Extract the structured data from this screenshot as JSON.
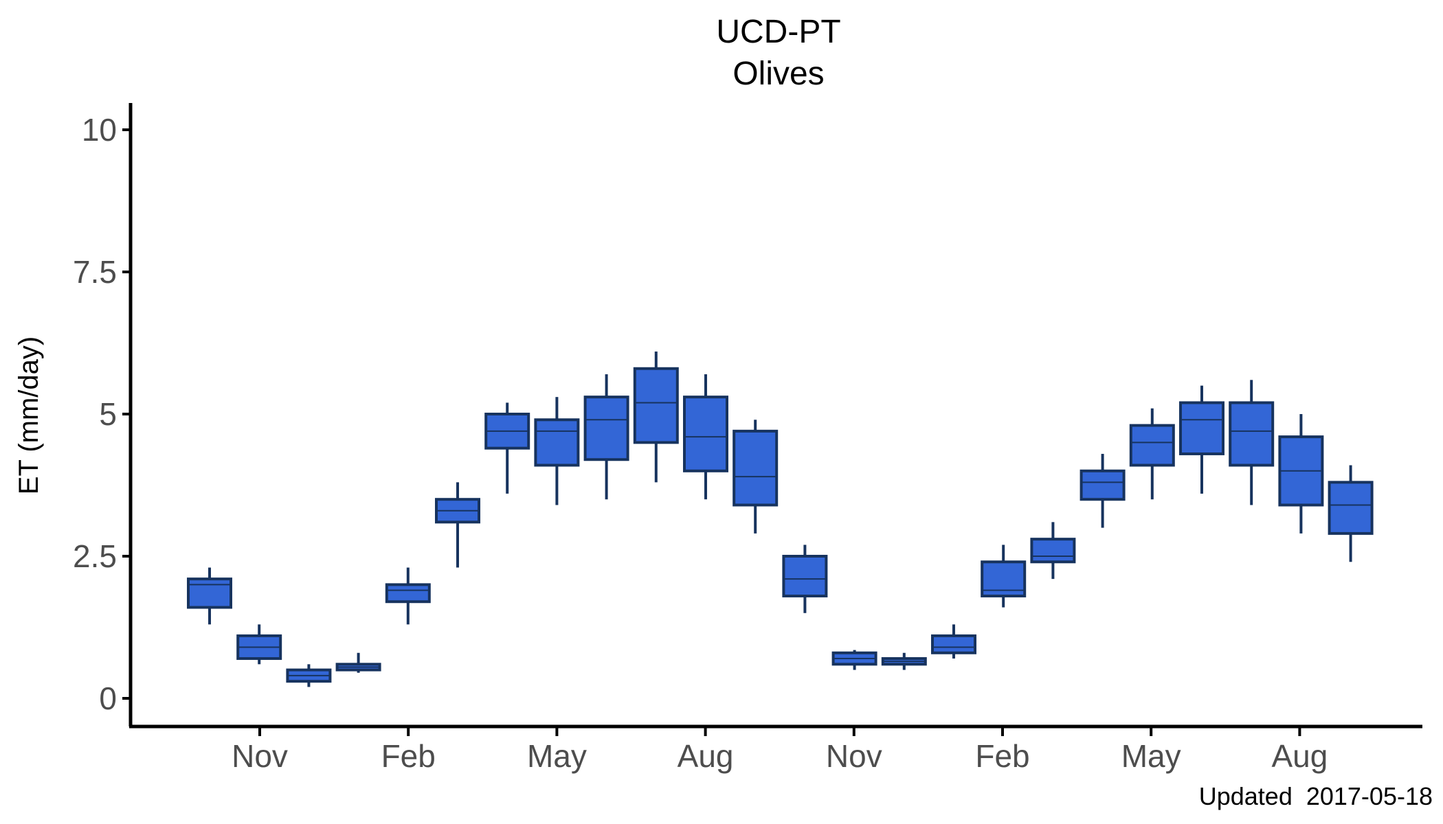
{
  "chart_data": {
    "type": "boxplot",
    "title": "UCD-PT",
    "subtitle": "Olives",
    "xlabel": "",
    "ylabel": "ET (mm/day)",
    "caption": "Updated  2017-05-18",
    "ylim": [
      -0.5,
      10.5
    ],
    "y_ticks": [
      {
        "value": 0,
        "label": "0"
      },
      {
        "value": 2.5,
        "label": "2.5"
      },
      {
        "value": 5,
        "label": "5"
      },
      {
        "value": 7.5,
        "label": "7.5"
      },
      {
        "value": 10,
        "label": "10"
      }
    ],
    "x_ticks": [
      {
        "month_index": 2,
        "label": "Nov"
      },
      {
        "month_index": 5,
        "label": "Feb"
      },
      {
        "month_index": 8,
        "label": "May"
      },
      {
        "month_index": 11,
        "label": "Aug"
      },
      {
        "month_index": 14,
        "label": "Nov"
      },
      {
        "month_index": 17,
        "label": "Feb"
      },
      {
        "month_index": 20,
        "label": "May"
      },
      {
        "month_index": 23,
        "label": "Aug"
      }
    ],
    "grid": false,
    "colors": {
      "box_fill": "#3366d6",
      "box_stroke": "#17335e",
      "axis": "#000000",
      "tick_text": "#4d4d4d"
    },
    "boxes": [
      {
        "month_index": 0,
        "min": 1.3,
        "q1": 1.6,
        "median": 2.0,
        "q3": 2.1,
        "max": 2.3
      },
      {
        "month_index": 1,
        "min": 0.6,
        "q1": 0.7,
        "median": 0.9,
        "q3": 1.1,
        "max": 1.3
      },
      {
        "month_index": 2,
        "min": 0.2,
        "q1": 0.3,
        "median": 0.4,
        "q3": 0.5,
        "max": 0.6
      },
      {
        "month_index": 3,
        "min": 0.45,
        "q1": 0.5,
        "median": 0.55,
        "q3": 0.6,
        "max": 0.8
      },
      {
        "month_index": 4,
        "min": 1.3,
        "q1": 1.7,
        "median": 1.9,
        "q3": 2.0,
        "max": 2.3
      },
      {
        "month_index": 5,
        "min": 2.3,
        "q1": 3.1,
        "median": 3.3,
        "q3": 3.5,
        "max": 3.8
      },
      {
        "month_index": 6,
        "min": 3.6,
        "q1": 4.4,
        "median": 4.7,
        "q3": 5.0,
        "max": 5.2
      },
      {
        "month_index": 7,
        "min": 3.4,
        "q1": 4.1,
        "median": 4.7,
        "q3": 4.9,
        "max": 5.3
      },
      {
        "month_index": 8,
        "min": 3.5,
        "q1": 4.2,
        "median": 4.9,
        "q3": 5.3,
        "max": 5.7
      },
      {
        "month_index": 9,
        "min": 3.8,
        "q1": 4.5,
        "median": 5.2,
        "q3": 5.8,
        "max": 6.1
      },
      {
        "month_index": 10,
        "min": 3.5,
        "q1": 4.0,
        "median": 4.6,
        "q3": 5.3,
        "max": 5.7
      },
      {
        "month_index": 11,
        "min": 2.9,
        "q1": 3.4,
        "median": 3.9,
        "q3": 4.7,
        "max": 4.9
      },
      {
        "month_index": 12,
        "min": 1.5,
        "q1": 1.8,
        "median": 2.1,
        "q3": 2.5,
        "max": 2.7
      },
      {
        "month_index": 13,
        "min": 0.5,
        "q1": 0.6,
        "median": 0.7,
        "q3": 0.8,
        "max": 0.85
      },
      {
        "month_index": 14,
        "min": 0.5,
        "q1": 0.6,
        "median": 0.65,
        "q3": 0.7,
        "max": 0.8
      },
      {
        "month_index": 15,
        "min": 0.7,
        "q1": 0.8,
        "median": 0.9,
        "q3": 1.1,
        "max": 1.3
      },
      {
        "month_index": 16,
        "min": 1.6,
        "q1": 1.8,
        "median": 1.9,
        "q3": 2.4,
        "max": 2.7
      },
      {
        "month_index": 17,
        "min": 2.1,
        "q1": 2.4,
        "median": 2.5,
        "q3": 2.8,
        "max": 3.1
      },
      {
        "month_index": 18,
        "min": 3.0,
        "q1": 3.5,
        "median": 3.8,
        "q3": 4.0,
        "max": 4.3
      },
      {
        "month_index": 19,
        "min": 3.5,
        "q1": 4.1,
        "median": 4.5,
        "q3": 4.8,
        "max": 5.1
      },
      {
        "month_index": 20,
        "min": 3.6,
        "q1": 4.3,
        "median": 4.9,
        "q3": 5.2,
        "max": 5.5
      },
      {
        "month_index": 21,
        "min": 3.4,
        "q1": 4.1,
        "median": 4.7,
        "q3": 5.2,
        "max": 5.6
      },
      {
        "month_index": 22,
        "min": 2.9,
        "q1": 3.4,
        "median": 4.0,
        "q3": 4.6,
        "max": 5.0
      },
      {
        "month_index": 23,
        "min": 2.4,
        "q1": 2.9,
        "median": 3.4,
        "q3": 3.8,
        "max": 4.1
      }
    ]
  }
}
